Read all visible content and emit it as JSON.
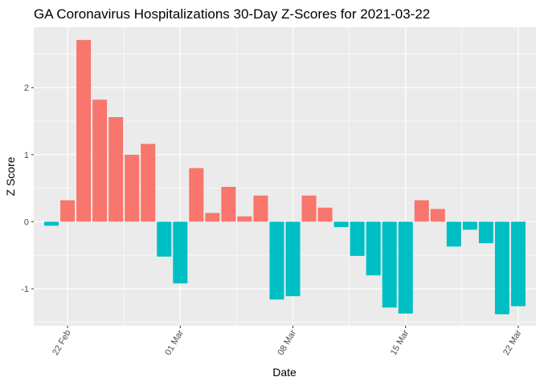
{
  "chart_data": {
    "type": "bar",
    "title": "GA Coronavirus Hospitalizations 30-Day Z-Scores for 2021-03-22",
    "xlabel": "Date",
    "ylabel": "Z Score",
    "x_tick_labels": [
      "22 Feb",
      "01 Mar",
      "08 Mar",
      "15 Mar",
      "22 Mar"
    ],
    "y_ticks": [
      -1,
      0,
      1,
      2
    ],
    "ylim": [
      -1.55,
      2.9
    ],
    "grid": true,
    "legend": "none",
    "colors": {
      "positive": "#F8766D",
      "negative": "#00BFC4",
      "panel_background": "#EBEBEB",
      "grid": "#FFFFFF"
    },
    "x": [
      "2021-02-21",
      "2021-02-22",
      "2021-02-23",
      "2021-02-24",
      "2021-02-25",
      "2021-02-26",
      "2021-02-27",
      "2021-02-28",
      "2021-03-01",
      "2021-03-02",
      "2021-03-03",
      "2021-03-04",
      "2021-03-05",
      "2021-03-06",
      "2021-03-07",
      "2021-03-08",
      "2021-03-09",
      "2021-03-10",
      "2021-03-11",
      "2021-03-12",
      "2021-03-13",
      "2021-03-14",
      "2021-03-15",
      "2021-03-16",
      "2021-03-17",
      "2021-03-18",
      "2021-03-19",
      "2021-03-20",
      "2021-03-21",
      "2021-03-22"
    ],
    "values": [
      -0.06,
      0.32,
      2.71,
      1.82,
      1.56,
      1.0,
      1.16,
      -0.52,
      -0.92,
      0.8,
      0.13,
      0.52,
      0.08,
      0.39,
      -1.16,
      -1.11,
      0.39,
      0.21,
      -0.08,
      -0.51,
      -0.8,
      -1.28,
      -1.37,
      0.32,
      0.19,
      -0.37,
      -0.12,
      -0.32,
      -1.38,
      -1.26
    ]
  }
}
